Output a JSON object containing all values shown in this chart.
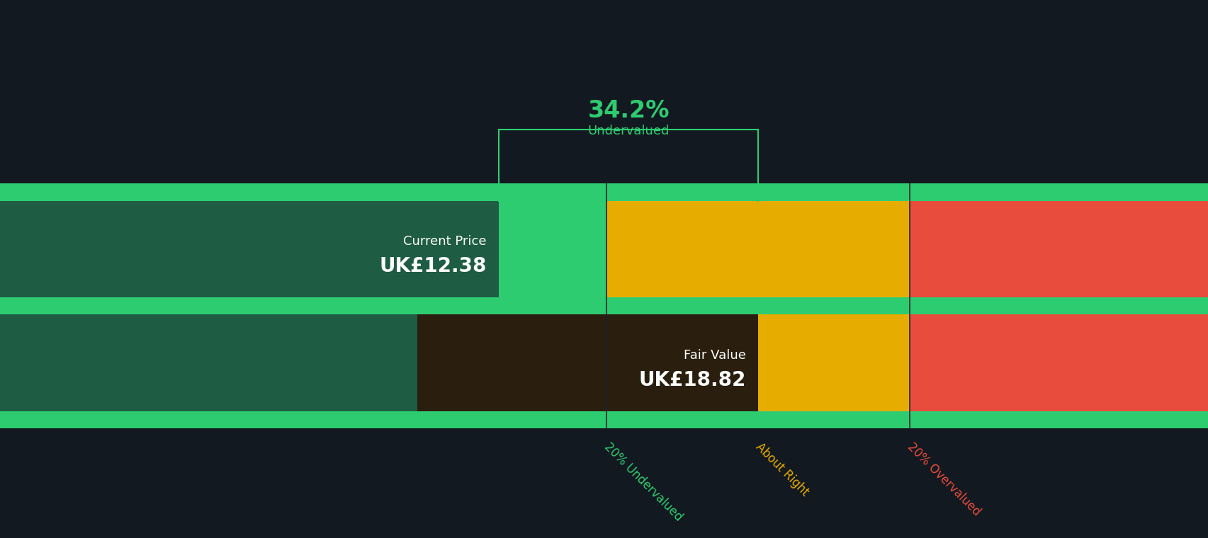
{
  "background_color": "#131920",
  "current_price": 12.38,
  "fair_value": 18.82,
  "undervalued_pct": "34.2%",
  "undervalued_label": "Undervalued",
  "current_price_label": "Current Price",
  "current_price_text": "UK£12.38",
  "fair_value_label": "Fair Value",
  "fair_value_text": "UK£18.82",
  "x_max": 30,
  "color_bright_green": "#2ecc71",
  "color_dark_green": "#1e5c44",
  "color_yellow": "#e6ac00",
  "color_red": "#e74c3c",
  "color_text_green": "#2ecc71",
  "color_text_yellow": "#e6ac00",
  "color_text_red": "#e74c3c",
  "color_white": "#ffffff",
  "color_fv_box": "#2a1f0e",
  "label_20_undervalued": "20% Undervalued",
  "label_about_right": "About Right",
  "label_20_overvalued": "20% Overvalued",
  "bracket_color": "#2ecc71"
}
